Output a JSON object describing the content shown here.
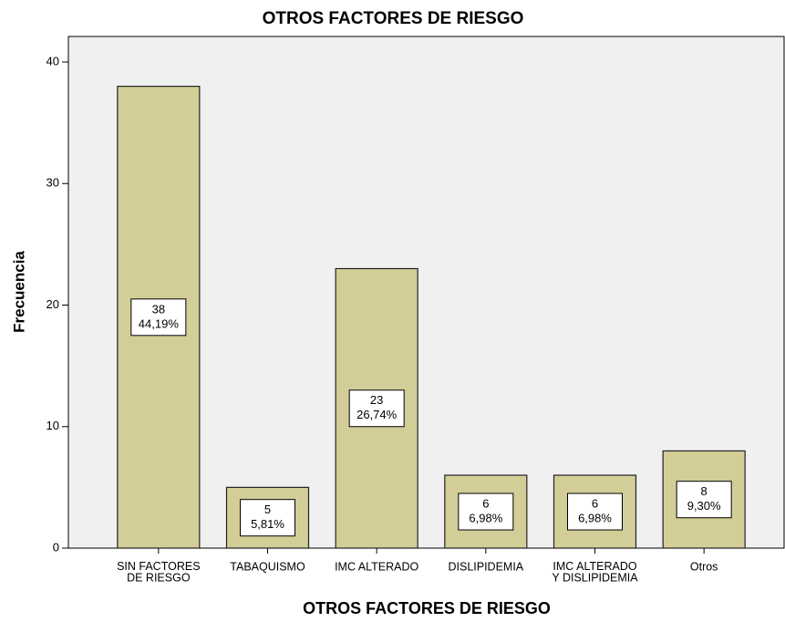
{
  "chart_data": {
    "type": "bar",
    "title": "OTROS FACTORES DE RIESGO",
    "xlabel": "OTROS FACTORES DE RIESGO",
    "ylabel": "Frecuencia",
    "categories": [
      "SIN FACTORES\nDE RIESGO",
      "TABAQUISMO",
      "IMC ALTERADO",
      "DISLIPIDEMIA",
      "IMC ALTERADO\nY DISLIPIDEMIA",
      "Otros"
    ],
    "values": [
      38,
      5,
      23,
      6,
      6,
      8
    ],
    "percentages": [
      44.19,
      5.81,
      26.74,
      6.98,
      6.98,
      9.3
    ],
    "percentage_labels": [
      "44,19%",
      "5,81%",
      "26,74%",
      "6,98%",
      "6,98%",
      "9,30%"
    ],
    "color": "#d3ce97",
    "ylim": [
      0,
      42.1
    ],
    "yticks": [
      0,
      10,
      20,
      30,
      40
    ],
    "grid": false
  }
}
